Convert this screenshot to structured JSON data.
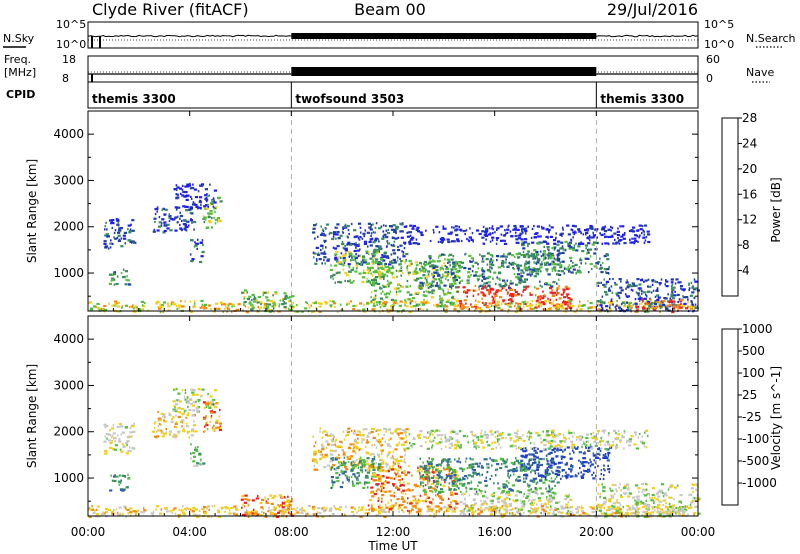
{
  "header": {
    "title": "Clyde River (fitACF)",
    "beam": "Beam 00",
    "date": "29/Jul/2016"
  },
  "noise_panel": {
    "left_label": "N.Sky",
    "left_ticks": [
      "10^5",
      "10^0"
    ],
    "right_label": "N.Search",
    "right_ticks": [
      "10^5",
      "10^0"
    ]
  },
  "freq_panel": {
    "left_label_1": "Freq.",
    "left_label_2": "[MHz]",
    "left_ticks": [
      "18",
      "8"
    ],
    "right_label": "Nave",
    "right_ticks": [
      "60",
      "0"
    ]
  },
  "cpid_panel": {
    "label": "CPID",
    "segments": [
      {
        "name": "themis 3300",
        "start_hour": 0,
        "end_hour": 8
      },
      {
        "name": "twofsound 3503",
        "start_hour": 8,
        "end_hour": 20
      },
      {
        "name": "themis 3300",
        "start_hour": 20,
        "end_hour": 24
      }
    ]
  },
  "x_axis": {
    "label": "Time UT",
    "ticks": [
      "00:00",
      "04:00",
      "08:00",
      "12:00",
      "16:00",
      "20:00",
      "00:00"
    ],
    "range_hours": [
      0,
      24
    ]
  },
  "chart_data": [
    {
      "type": "heatmap",
      "ylabel": "Slant Range [km]",
      "ylim": [
        180,
        4500
      ],
      "yticks": [
        1000,
        2000,
        3000,
        4000
      ],
      "colorbar_label": "Power [dB]",
      "colorbar_ticks": [
        4,
        8,
        12,
        16,
        20,
        24,
        28
      ],
      "colorbar_colors": [
        "#1e1ef0",
        "#2040a8",
        "#3a8a60",
        "#55c040",
        "#f0d020",
        "#f08a10",
        "#f02020"
      ],
      "regions": [
        {
          "t": [
            0.6,
            1.8
          ],
          "r": [
            1550,
            2200
          ],
          "level": 1
        },
        {
          "t": [
            0.8,
            1.6
          ],
          "r": [
            750,
            1100
          ],
          "level": 2
        },
        {
          "t": [
            2.5,
            4.2
          ],
          "r": [
            1900,
            2450
          ],
          "level": 1
        },
        {
          "t": [
            3.3,
            5.0
          ],
          "r": [
            2400,
            2950
          ],
          "level": 0
        },
        {
          "t": [
            4.0,
            4.5
          ],
          "r": [
            1250,
            1750
          ],
          "level": 1
        },
        {
          "t": [
            4.5,
            5.2
          ],
          "r": [
            2000,
            2700
          ],
          "level": 3
        },
        {
          "t": [
            8.8,
            12.5
          ],
          "r": [
            1200,
            2100
          ],
          "level": 1
        },
        {
          "t": [
            9.5,
            11.5
          ],
          "r": [
            800,
            1500
          ],
          "level": 3
        },
        {
          "t": [
            11.0,
            14.5
          ],
          "r": [
            300,
            1300
          ],
          "level": 3
        },
        {
          "t": [
            13.0,
            18.5
          ],
          "r": [
            700,
            1450
          ],
          "level": 2
        },
        {
          "t": [
            14.5,
            19.0
          ],
          "r": [
            230,
            750
          ],
          "level": 6
        },
        {
          "t": [
            17.0,
            20.5
          ],
          "r": [
            1000,
            1700
          ],
          "level": 2
        },
        {
          "t": [
            12.5,
            22.0
          ],
          "r": [
            1650,
            2050
          ],
          "level": 0
        },
        {
          "t": [
            0.0,
            24.0
          ],
          "r": [
            180,
            420
          ],
          "level": 4
        },
        {
          "t": [
            20.0,
            24.0
          ],
          "r": [
            180,
            900
          ],
          "level": 1
        },
        {
          "t": [
            21.5,
            23.5
          ],
          "r": [
            180,
            450
          ],
          "level": 6
        },
        {
          "t": [
            6.0,
            8.0
          ],
          "r": [
            180,
            650
          ],
          "level": 3
        }
      ]
    },
    {
      "type": "heatmap",
      "ylabel": "Slant Range [km]",
      "ylim": [
        180,
        4500
      ],
      "yticks": [
        1000,
        2000,
        3000,
        4000
      ],
      "colorbar_label": "Velocity [m s^-1]",
      "colorbar_ticks": [
        1000,
        500,
        100,
        25,
        -25,
        -100,
        -500,
        -1000
      ],
      "colorbar_colors": [
        "#2040c0",
        "#3060a8",
        "#3a9060",
        "#55c040",
        "#c8c8c8",
        "#f0d020",
        "#f08a10",
        "#f02020"
      ],
      "regions": [
        {
          "t": [
            0.6,
            1.8
          ],
          "r": [
            1550,
            2200
          ],
          "level": 4
        },
        {
          "t": [
            0.8,
            1.6
          ],
          "r": [
            750,
            1100
          ],
          "level": 2
        },
        {
          "t": [
            2.5,
            4.2
          ],
          "r": [
            1900,
            2450
          ],
          "level": 5
        },
        {
          "t": [
            3.3,
            5.0
          ],
          "r": [
            2400,
            2950
          ],
          "level": 4
        },
        {
          "t": [
            4.0,
            4.5
          ],
          "r": [
            1250,
            1750
          ],
          "level": 3
        },
        {
          "t": [
            4.5,
            5.2
          ],
          "r": [
            2000,
            2700
          ],
          "level": 6
        },
        {
          "t": [
            8.8,
            12.5
          ],
          "r": [
            1200,
            2100
          ],
          "level": 5
        },
        {
          "t": [
            9.5,
            11.5
          ],
          "r": [
            800,
            1500
          ],
          "level": 2
        },
        {
          "t": [
            11.0,
            14.5
          ],
          "r": [
            300,
            1300
          ],
          "level": 6
        },
        {
          "t": [
            13.0,
            18.5
          ],
          "r": [
            700,
            1450
          ],
          "level": 2
        },
        {
          "t": [
            14.5,
            19.0
          ],
          "r": [
            230,
            750
          ],
          "level": 4
        },
        {
          "t": [
            17.0,
            20.5
          ],
          "r": [
            1000,
            1700
          ],
          "level": 0
        },
        {
          "t": [
            12.5,
            22.0
          ],
          "r": [
            1650,
            2050
          ],
          "level": 4
        },
        {
          "t": [
            0.0,
            24.0
          ],
          "r": [
            180,
            420
          ],
          "level": 5
        },
        {
          "t": [
            20.0,
            24.0
          ],
          "r": [
            180,
            900
          ],
          "level": 4
        },
        {
          "t": [
            21.5,
            23.5
          ],
          "r": [
            180,
            450
          ],
          "level": 4
        },
        {
          "t": [
            6.0,
            8.0
          ],
          "r": [
            180,
            650
          ],
          "level": 6
        }
      ]
    }
  ]
}
